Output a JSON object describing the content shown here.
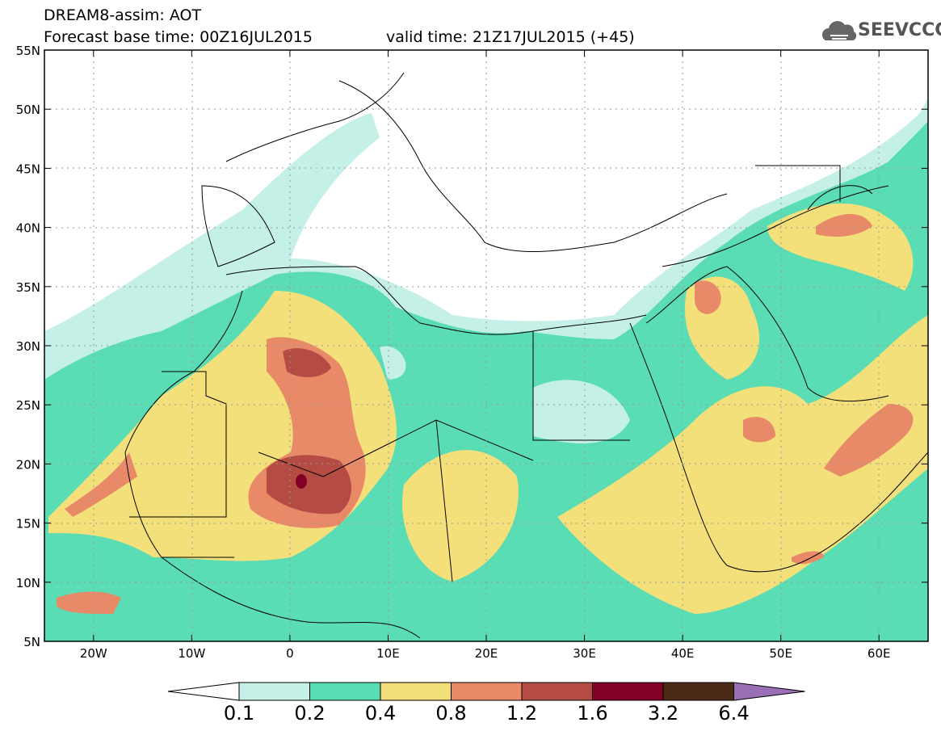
{
  "header": {
    "title": "DREAM8-assim: AOT",
    "base_time": "Forecast base time: 00Z16JUL2015",
    "valid_time": "valid time: 21Z17JUL2015 (+45)"
  },
  "logo": {
    "text": "SEEVCCC",
    "icon": "cloud-icon"
  },
  "map": {
    "variable": "AOT",
    "lat_range": [
      5,
      55
    ],
    "lon_range": [
      -25,
      65
    ],
    "lat_ticks": [
      "55N",
      "50N",
      "45N",
      "40N",
      "35N",
      "30N",
      "25N",
      "20N",
      "15N",
      "10N",
      "5N"
    ],
    "lon_ticks": [
      "20W",
      "10W",
      "0",
      "10E",
      "20E",
      "30E",
      "40E",
      "50E",
      "60E"
    ]
  },
  "legend": {
    "bins": [
      {
        "from": 0.1,
        "to": 0.2,
        "color": "#c4f0e8"
      },
      {
        "from": 0.2,
        "to": 0.4,
        "color": "#5adcb4"
      },
      {
        "from": 0.4,
        "to": 0.8,
        "color": "#f4e07a"
      },
      {
        "from": 0.8,
        "to": 1.2,
        "color": "#e88a68"
      },
      {
        "from": 1.2,
        "to": 1.6,
        "color": "#b44c44"
      },
      {
        "from": 1.6,
        "to": 3.2,
        "color": "#820028"
      },
      {
        "from": 3.2,
        "to": 6.4,
        "color": "#4a2a16"
      }
    ],
    "low_color": "#ffffff",
    "high_color": "#9a70b4",
    "labels": [
      "0.1",
      "0.2",
      "0.4",
      "0.8",
      "1.2",
      "1.6",
      "3.2",
      "6.4"
    ]
  }
}
